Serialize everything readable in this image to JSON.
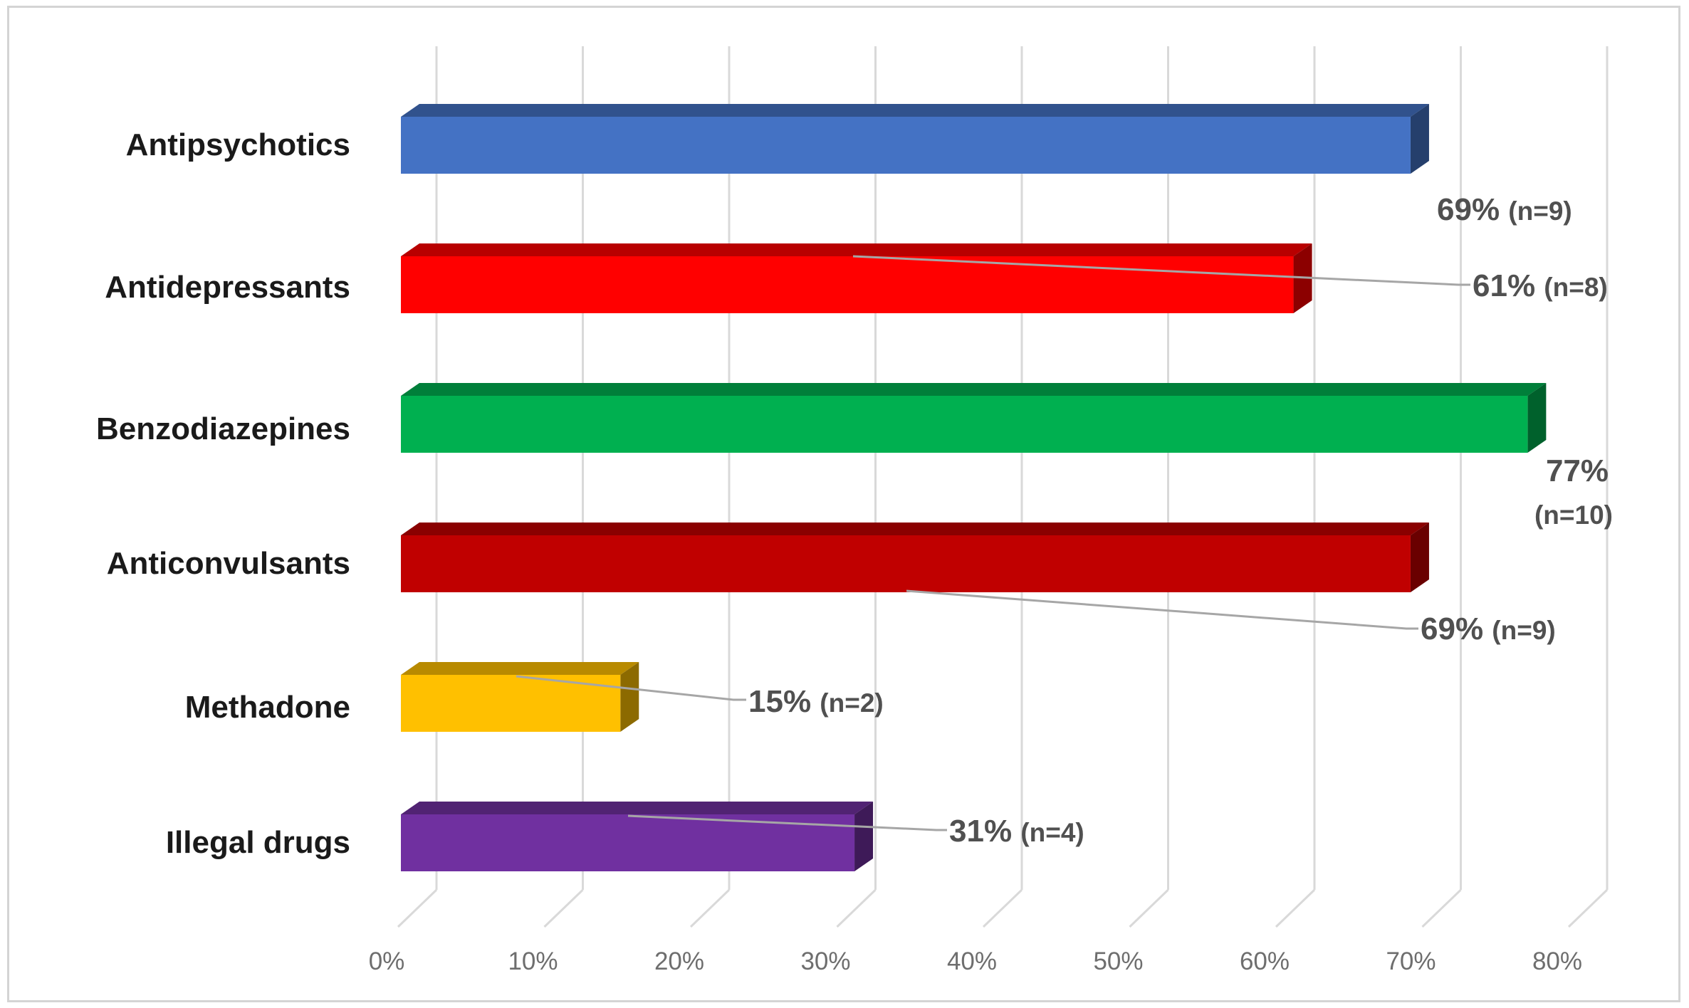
{
  "chart_data": {
    "type": "bar",
    "orientation": "horizontal",
    "categories": [
      "Antipsychotics",
      "Antidepressants",
      "Benzodiazepines",
      "Anticonvulsants",
      "Methadone",
      "Illegal drugs"
    ],
    "values": [
      69,
      61,
      77,
      69,
      15,
      31
    ],
    "value_labels": [
      "69%",
      "61%",
      "77%",
      "69%",
      "15%",
      "31%"
    ],
    "n_labels": [
      "(n=9)",
      "(n=8)",
      "(n=10)",
      "(n=9)",
      "(n=2)",
      "(n=4)"
    ],
    "colors": [
      "#4472c4",
      "#ff0000",
      "#00b050",
      "#c00000",
      "#ffc000",
      "#7030a0"
    ],
    "xlim": [
      0,
      80
    ],
    "ticks": [
      "0%",
      "10%",
      "20%",
      "30%",
      "40%",
      "50%",
      "60%",
      "70%",
      "80%"
    ],
    "grid": true,
    "title": "",
    "xlabel": "",
    "ylabel": ""
  }
}
